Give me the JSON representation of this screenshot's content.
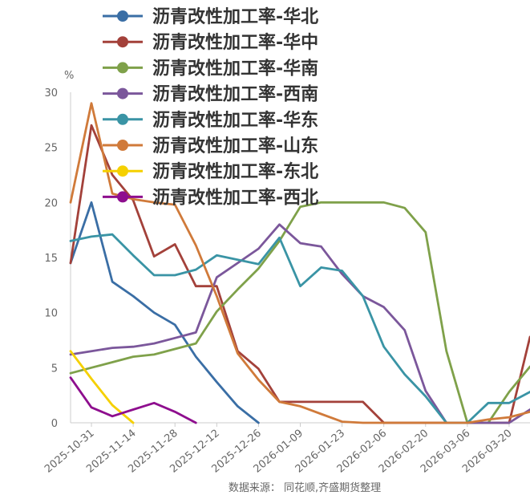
{
  "chart_data": {
    "type": "line",
    "ylabel": "%",
    "ylim": [
      0,
      30
    ],
    "yticks": [
      "0",
      "5",
      "10",
      "15",
      "20",
      "25",
      "30"
    ],
    "xticks": [
      "2025-10-31",
      "2025-11-14",
      "2025-11-28",
      "2025-12-12",
      "2025-12-26",
      "2026-01-09",
      "2026-01-23",
      "2026-02-06",
      "2026-02-20",
      "2026-03-06",
      "2026-03-20"
    ],
    "x_start": "2025-10-24",
    "x_end": "2026-03-27",
    "grid": false,
    "legend_position": "top",
    "source_note": "数据来源： 同花顺,齐盛期货整理",
    "series": [
      {
        "name": "沥青改性加工率-华北",
        "color": "#3A6EA5",
        "x": [
          "2025-10-24",
          "2025-10-31",
          "2025-11-07",
          "2025-11-14",
          "2025-11-21",
          "2025-11-28",
          "2025-12-05",
          "2025-12-12",
          "2025-12-19",
          "2025-12-26"
        ],
        "y": [
          14.5,
          20,
          12.8,
          11.5,
          10,
          8.9,
          6,
          3.7,
          1.5,
          0
        ]
      },
      {
        "name": "沥青改性加工率-华中",
        "color": "#A3413A",
        "x": [
          "2025-10-24",
          "2025-10-31",
          "2025-11-07",
          "2025-11-14",
          "2025-11-21",
          "2025-11-28",
          "2025-12-05",
          "2025-12-12",
          "2025-12-19",
          "2025-12-26",
          "2026-01-02",
          "2026-01-09",
          "2026-01-16",
          "2026-01-23",
          "2026-01-30",
          "2026-02-06",
          "2026-02-13",
          "2026-02-20",
          "2026-02-27",
          "2026-03-06",
          "2026-03-13",
          "2026-03-20",
          "2026-03-27"
        ],
        "y": [
          14.5,
          27,
          22.5,
          20.2,
          15.1,
          16.2,
          12.4,
          12.4,
          6.5,
          4.9,
          1.9,
          1.9,
          1.9,
          1.9,
          1.9,
          0,
          0,
          0,
          0,
          0,
          0,
          0,
          7.8
        ]
      },
      {
        "name": "沥青改性加工率-华南",
        "color": "#7FA14A",
        "x": [
          "2025-10-24",
          "2025-10-31",
          "2025-11-07",
          "2025-11-14",
          "2025-11-21",
          "2025-11-28",
          "2025-12-05",
          "2025-12-12",
          "2025-12-19",
          "2025-12-26",
          "2026-01-02",
          "2026-01-09",
          "2026-01-16",
          "2026-01-23",
          "2026-01-30",
          "2026-02-06",
          "2026-02-13",
          "2026-02-20",
          "2026-02-27",
          "2026-03-06",
          "2026-03-13",
          "2026-03-20",
          "2026-03-27"
        ],
        "y": [
          4.5,
          5,
          5.5,
          6,
          6.2,
          6.7,
          7.2,
          10.1,
          12.1,
          14,
          16.5,
          19.6,
          20,
          20,
          20,
          20,
          19.5,
          17.3,
          6.5,
          0,
          0,
          2.8,
          5.1
        ]
      },
      {
        "name": "沥青改性加工率-西南",
        "color": "#7B579B",
        "x": [
          "2025-10-24",
          "2025-10-31",
          "2025-11-07",
          "2025-11-14",
          "2025-11-21",
          "2025-11-28",
          "2025-12-05",
          "2025-12-12",
          "2025-12-19",
          "2025-12-26",
          "2026-01-02",
          "2026-01-09",
          "2026-01-16",
          "2026-01-23",
          "2026-01-30",
          "2026-02-06",
          "2026-02-13",
          "2026-02-20",
          "2026-02-27",
          "2026-03-06",
          "2026-03-13",
          "2026-03-20",
          "2026-03-27"
        ],
        "y": [
          6.2,
          6.5,
          6.8,
          6.9,
          7.2,
          7.7,
          8.2,
          13.2,
          14.5,
          15.8,
          18,
          16.3,
          16,
          13.5,
          11.5,
          10.5,
          8.4,
          2.9,
          0,
          0,
          0,
          0,
          1.2
        ]
      },
      {
        "name": "沥青改性加工率-华东",
        "color": "#3A94A5",
        "x": [
          "2025-10-24",
          "2025-10-31",
          "2025-11-07",
          "2025-11-14",
          "2025-11-21",
          "2025-11-28",
          "2025-12-05",
          "2025-12-12",
          "2025-12-19",
          "2025-12-26",
          "2026-01-02",
          "2026-01-09",
          "2026-01-16",
          "2026-01-23",
          "2026-01-30",
          "2026-02-06",
          "2026-02-13",
          "2026-02-20",
          "2026-02-27",
          "2026-03-06",
          "2026-03-13",
          "2026-03-20",
          "2026-03-27"
        ],
        "y": [
          16.5,
          16.9,
          17.1,
          15.2,
          13.4,
          13.4,
          13.9,
          15.2,
          14.8,
          14.4,
          16.8,
          12.4,
          14.1,
          13.8,
          11.5,
          6.9,
          4.4,
          2.4,
          0,
          0,
          1.8,
          1.8,
          2.8
        ]
      },
      {
        "name": "沥青改性加工率-山东",
        "color": "#D07A3A",
        "x": [
          "2025-10-24",
          "2025-10-31",
          "2025-11-07",
          "2025-11-14",
          "2025-11-21",
          "2025-11-28",
          "2025-12-05",
          "2025-12-12",
          "2025-12-19",
          "2025-12-26",
          "2026-01-02",
          "2026-01-09",
          "2026-01-16",
          "2026-01-23",
          "2026-01-30",
          "2026-02-06",
          "2026-02-13",
          "2026-02-20",
          "2026-02-27",
          "2026-03-06",
          "2026-03-13",
          "2026-03-20",
          "2026-03-27"
        ],
        "y": [
          20,
          29,
          20.8,
          20.3,
          20,
          19.8,
          16.1,
          11.5,
          6.3,
          3.9,
          1.9,
          1.5,
          0.8,
          0.1,
          0,
          0,
          0,
          0,
          0,
          0,
          0.3,
          0.5,
          1
        ]
      },
      {
        "name": "沥青改性加工率-东北",
        "color": "#F5D000",
        "x": [
          "2025-10-24",
          "2025-10-31",
          "2025-11-07",
          "2025-11-14"
        ],
        "y": [
          6.5,
          4,
          1.6,
          0
        ]
      },
      {
        "name": "沥青改性加工率-西北",
        "color": "#8E0E8E",
        "x": [
          "2025-10-24",
          "2025-10-31",
          "2025-11-07",
          "2025-11-14",
          "2025-11-21",
          "2025-11-28",
          "2025-12-05"
        ],
        "y": [
          4.1,
          1.4,
          0.6,
          1.2,
          1.8,
          1.0,
          0
        ]
      }
    ]
  }
}
